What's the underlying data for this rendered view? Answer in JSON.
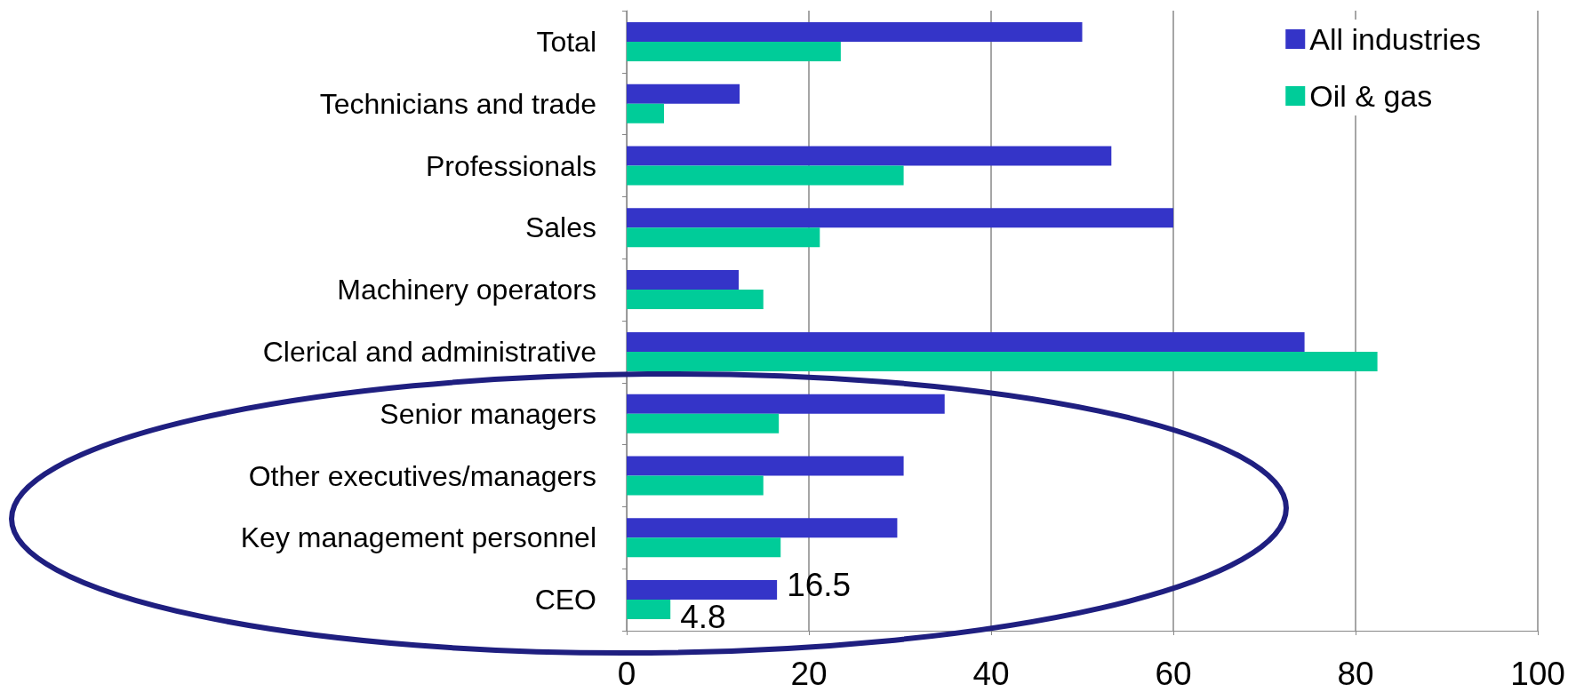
{
  "chart_data": {
    "type": "bar",
    "orientation": "horizontal",
    "categories": [
      "Total",
      "Technicians and trade",
      "Professionals",
      "Sales",
      "Machinery operators",
      "Clerical and administrative",
      "Senior managers",
      "Other executives/managers",
      "Key management personnel",
      "CEO"
    ],
    "series": [
      {
        "name": "All industries",
        "color": "#3434c8",
        "values": [
          50.0,
          12.4,
          53.2,
          60.0,
          12.3,
          74.4,
          34.9,
          30.4,
          29.7,
          16.5
        ],
        "value_labels": [
          null,
          null,
          null,
          null,
          null,
          null,
          null,
          null,
          null,
          "16.5"
        ]
      },
      {
        "name": "Oil & gas",
        "color": "#00cc99",
        "values": [
          23.5,
          4.1,
          30.4,
          21.2,
          15.0,
          82.4,
          16.7,
          15.0,
          16.9,
          4.8
        ],
        "value_labels": [
          null,
          null,
          null,
          null,
          null,
          null,
          null,
          null,
          null,
          "4.8"
        ]
      }
    ],
    "xlim": [
      0,
      100
    ],
    "xticks": [
      0,
      20,
      40,
      60,
      80,
      100
    ],
    "grid": "x",
    "legend": "top right"
  }
}
